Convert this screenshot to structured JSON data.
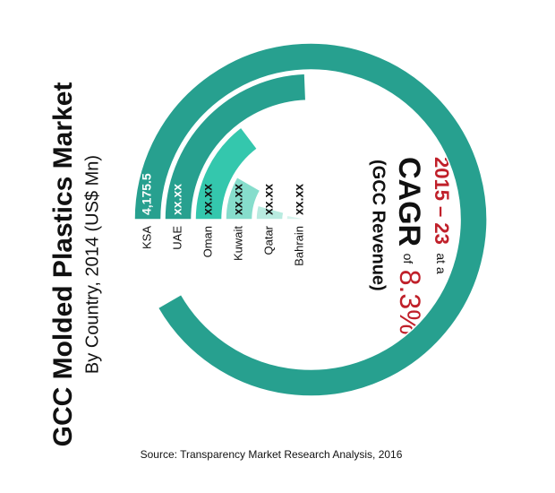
{
  "chart_data": {
    "type": "radial-bar",
    "title": "GCC Molded Plastics Market",
    "subtitle": "By Country, 2014 (US$ Mn)",
    "categories": [
      "KSA",
      "UAE",
      "Oman",
      "Kuwait",
      "Qatar",
      "Bahrain"
    ],
    "values": [
      4175.5,
      1110,
      670,
      380,
      190,
      130
    ],
    "value_labels": [
      "4,175.5",
      "xx.xx",
      "xx.xx",
      "xx.xx",
      "xx.xx",
      "xx.xx"
    ],
    "colors": [
      "#27a08f",
      "#27a08f",
      "#34c7ad",
      "#86ddcc",
      "#b8ebe0",
      "#d6f3ed"
    ],
    "label_colors": [
      "#ffffff",
      "#ffffff",
      "#111111",
      "#111111",
      "#111111",
      "#111111"
    ],
    "annotations": {
      "period": "2015 – 23",
      "at_a": "at a",
      "cagr": "CAGR",
      "of": "of",
      "rate": "8.3%",
      "scope": "(GCC Revenue)"
    },
    "source": "Source: Transparency Market Research Analysis, 2016"
  }
}
